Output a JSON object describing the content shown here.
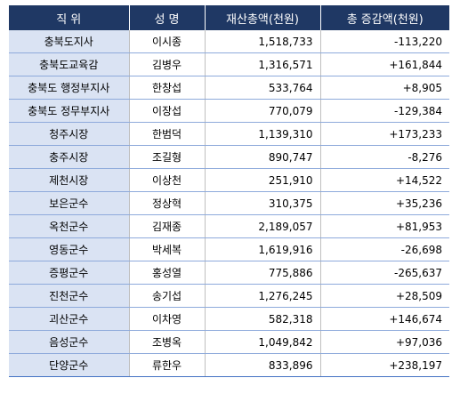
{
  "headers": {
    "position": "직   위",
    "name": "성   명",
    "assets": "재산총액(천원)",
    "change": "총  증감액(천원)"
  },
  "rows": [
    {
      "position": "충북도지사",
      "name": "이시종",
      "assets": "1,518,733",
      "change": "-113,220"
    },
    {
      "position": "충북도교육감",
      "name": "김병우",
      "assets": "1,316,571",
      "change": "+161,844"
    },
    {
      "position": "충북도  행정부지사",
      "name": "한창섭",
      "assets": "533,764",
      "change": "+8,905"
    },
    {
      "position": "충북도  정무부지사",
      "name": "이장섭",
      "assets": "770,079",
      "change": "-129,384"
    },
    {
      "position": "청주시장",
      "name": "한범덕",
      "assets": "1,139,310",
      "change": "+173,233"
    },
    {
      "position": "충주시장",
      "name": "조길형",
      "assets": "890,747",
      "change": "-8,276"
    },
    {
      "position": "제천시장",
      "name": "이상천",
      "assets": "251,910",
      "change": "+14,522"
    },
    {
      "position": "보은군수",
      "name": "정상혁",
      "assets": "310,375",
      "change": "+35,236"
    },
    {
      "position": "옥천군수",
      "name": "김재종",
      "assets": "2,189,057",
      "change": "+81,953"
    },
    {
      "position": "영동군수",
      "name": "박세복",
      "assets": "1,619,916",
      "change": "-26,698"
    },
    {
      "position": "증평군수",
      "name": "홍성열",
      "assets": "775,886",
      "change": "-265,637"
    },
    {
      "position": "진천군수",
      "name": "송기섭",
      "assets": "1,276,245",
      "change": "+28,509"
    },
    {
      "position": "괴산군수",
      "name": "이차영",
      "assets": "582,318",
      "change": "+146,674"
    },
    {
      "position": "음성군수",
      "name": "조병옥",
      "assets": "1,049,842",
      "change": "+97,036"
    },
    {
      "position": "단양군수",
      "name": "류한우",
      "assets": "833,896",
      "change": "+238,197"
    }
  ]
}
